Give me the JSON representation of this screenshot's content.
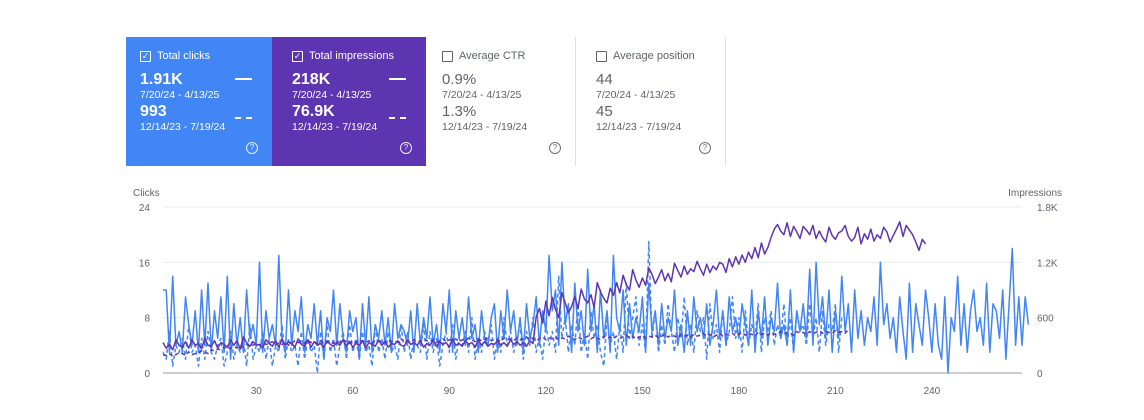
{
  "cards": [
    {
      "label": "Total clicks",
      "checked": true,
      "value_current": "1.91K",
      "range_current": "7/20/24 - 4/13/25",
      "value_previous": "993",
      "range_previous": "12/14/23 - 7/19/24"
    },
    {
      "label": "Total impressions",
      "checked": true,
      "value_current": "218K",
      "range_current": "7/20/24 - 4/13/25",
      "value_previous": "76.9K",
      "range_previous": "12/14/23 - 7/19/24"
    },
    {
      "label": "Average CTR",
      "checked": false,
      "value_current": "0.9%",
      "range_current": "7/20/24 - 4/13/25",
      "value_previous": "1.3%",
      "range_previous": "12/14/23 - 7/19/24"
    },
    {
      "label": "Average position",
      "checked": false,
      "value_current": "44",
      "range_current": "7/20/24 - 4/13/25",
      "value_previous": "45",
      "range_previous": "12/14/23 - 7/19/24"
    }
  ],
  "colors": {
    "clicks": "#4285f4",
    "impressions": "#5e35b1"
  },
  "chart_data": {
    "type": "line",
    "ylabel_left": "Clicks",
    "ylabel_right": "Impressions",
    "y_left_ticks": [
      "0",
      "8",
      "16",
      "24"
    ],
    "y_left_range": [
      0,
      24
    ],
    "y_right_ticks": [
      "0",
      "600",
      "1.2K",
      "1.8K"
    ],
    "y_right_range": [
      0,
      1800
    ],
    "x_range": [
      1,
      268
    ],
    "x_ticks": [
      "30",
      "60",
      "90",
      "120",
      "150",
      "180",
      "210",
      "240"
    ],
    "legend": "top-right",
    "series": [
      {
        "name": "Clicks (7/20/24 - 4/13/25)",
        "axis": "left",
        "style": "solid",
        "color": "#4285f4",
        "values": [
          12,
          12,
          3,
          14,
          4,
          6,
          3,
          11,
          7,
          4,
          9,
          3,
          12,
          4,
          13,
          3,
          9,
          5,
          11,
          3,
          14,
          2,
          10,
          4,
          8,
          3,
          12,
          5,
          7,
          4,
          16,
          3,
          9,
          5,
          7,
          4,
          17,
          5,
          3,
          12,
          4,
          9,
          6,
          11,
          3,
          7,
          5,
          10,
          4,
          9,
          2,
          8,
          6,
          12,
          4,
          10,
          5,
          3,
          9,
          6,
          8,
          2,
          10,
          4,
          11,
          3,
          7,
          5,
          9,
          4,
          8,
          3,
          10,
          5,
          7,
          6,
          4,
          9,
          3,
          10,
          4,
          8,
          5,
          11,
          4,
          7,
          3,
          10,
          6,
          12,
          3,
          9,
          5,
          8,
          4,
          11,
          5,
          7,
          3,
          9,
          5,
          4,
          8,
          10,
          3,
          9,
          5,
          12,
          6,
          9,
          4,
          8,
          3,
          10,
          5,
          7,
          11,
          4,
          9,
          6,
          17,
          9,
          12,
          4,
          16,
          7,
          10,
          3,
          13,
          6,
          9,
          4,
          15,
          6,
          10,
          3,
          12,
          5,
          9,
          3,
          17,
          8,
          6,
          12,
          4,
          10,
          5,
          8,
          6,
          11,
          3,
          13,
          6,
          9,
          4,
          10,
          5,
          8,
          6,
          12,
          4,
          7,
          3,
          9,
          4,
          11,
          6,
          8,
          5,
          10,
          4,
          7,
          12,
          5,
          9,
          4,
          11,
          6,
          8,
          5,
          10,
          7,
          4,
          12,
          3,
          9,
          5,
          11,
          4,
          8,
          6,
          13,
          5,
          7,
          4,
          12,
          3,
          9,
          6,
          10,
          5,
          15,
          4,
          16,
          7,
          11,
          5,
          12,
          3,
          9,
          5,
          14,
          6,
          10,
          3,
          12,
          5,
          9,
          4,
          8,
          6,
          11,
          4,
          16,
          7,
          10,
          5,
          8,
          3,
          11,
          6,
          2,
          13,
          3,
          10,
          7,
          4,
          12,
          8,
          3,
          10,
          4,
          2,
          11,
          0,
          8,
          6,
          14,
          4,
          10,
          3,
          9,
          12,
          6,
          8,
          4,
          13,
          3,
          10,
          9,
          5,
          12,
          2,
          10,
          18,
          4,
          11,
          4,
          11,
          7
        ]
      },
      {
        "name": "Clicks (12/14/23 - 7/19/24)",
        "axis": "left",
        "style": "dashed",
        "color": "#4285f4",
        "values": [
          3,
          2,
          6,
          1,
          4,
          3,
          5,
          2,
          7,
          3,
          4,
          1,
          5,
          2,
          6,
          3,
          2,
          4,
          5,
          1,
          3,
          6,
          2,
          4,
          3,
          5,
          1,
          7,
          2,
          4,
          3,
          6,
          2,
          5,
          1,
          4,
          3,
          7,
          2,
          5,
          3,
          4,
          1,
          6,
          2,
          5,
          3,
          4,
          0,
          6,
          2,
          7,
          3,
          5,
          1,
          4,
          6,
          2,
          7,
          3,
          5,
          2,
          6,
          3,
          4,
          1,
          7,
          3,
          5,
          2,
          6,
          3,
          4,
          2,
          7,
          3,
          6,
          2,
          5,
          4,
          3,
          7,
          2,
          6,
          3,
          5,
          1,
          4,
          6,
          3,
          7,
          2,
          5,
          4,
          6,
          3,
          8,
          2,
          5,
          3,
          6,
          4,
          7,
          2,
          5,
          3,
          8,
          4,
          6,
          3,
          5,
          7,
          2,
          6,
          4,
          8,
          3,
          5,
          2,
          7,
          4,
          6,
          3,
          14,
          5,
          8,
          3,
          7,
          4,
          10,
          3,
          6,
          2,
          9,
          5,
          7,
          3,
          1,
          8,
          4,
          6,
          2,
          7,
          3,
          13,
          5,
          8,
          11,
          4,
          7,
          3,
          19,
          5,
          9,
          3,
          7,
          4,
          10,
          6,
          3,
          8,
          5,
          11,
          4,
          7,
          3,
          9,
          6,
          8,
          2,
          10,
          5,
          7,
          3,
          9,
          4,
          6,
          11,
          5,
          8,
          3,
          9,
          4,
          7,
          5,
          10,
          3,
          8,
          6,
          9,
          4,
          7,
          5,
          10,
          4,
          8,
          3,
          9,
          6,
          7,
          4,
          10,
          5,
          8,
          3,
          9,
          4,
          7,
          6,
          10,
          3,
          8
        ]
      },
      {
        "name": "Impressions (7/20/24 - 4/13/25)",
        "axis": "right",
        "style": "solid",
        "color": "#5e35b1",
        "values": [
          330,
          270,
          310,
          250,
          360,
          300,
          280,
          340,
          270,
          360,
          300,
          320,
          260,
          380,
          300,
          290,
          350,
          270,
          330,
          310,
          280,
          360,
          300,
          350,
          260,
          390,
          330,
          290,
          340,
          300,
          310,
          270,
          360,
          320,
          290,
          350,
          280,
          370,
          300,
          340,
          320,
          280,
          370,
          310,
          290,
          360,
          280,
          340,
          300,
          320,
          280,
          350,
          310,
          290,
          330,
          300,
          360,
          290,
          340,
          280,
          320,
          300,
          350,
          270,
          330,
          310,
          290,
          360,
          300,
          340,
          280,
          320,
          310,
          350,
          300,
          290,
          360,
          310,
          330,
          300,
          350,
          280,
          320,
          300,
          360,
          290,
          340,
          310,
          330,
          280,
          370,
          300,
          320,
          290,
          350,
          310,
          330,
          280,
          360,
          300,
          340,
          290,
          320,
          310,
          350,
          300,
          330,
          290,
          360,
          310,
          340,
          300,
          330,
          290,
          350,
          320,
          610,
          700,
          540,
          780,
          620,
          820,
          690,
          600,
          870,
          760,
          650,
          720,
          830,
          700,
          910,
          800,
          760,
          850,
          710,
          980,
          880,
          810,
          760,
          920,
          840,
          980,
          870,
          1060,
          960,
          900,
          1120,
          1010,
          930,
          1030,
          950,
          1140,
          1070,
          970,
          1040,
          1120,
          1000,
          1080,
          990,
          1190,
          1110,
          1040,
          1160,
          1070,
          1130,
          1100,
          1210,
          1130,
          1060,
          1180,
          1090,
          1160,
          1120,
          1200,
          1180,
          1090,
          1240,
          1150,
          1260,
          1180,
          1280,
          1200,
          1310,
          1240,
          1360,
          1250,
          1410,
          1290,
          1360,
          1470,
          1560,
          1610,
          1540,
          1500,
          1630,
          1480,
          1590,
          1530,
          1460,
          1590,
          1550,
          1500,
          1600,
          1460,
          1540,
          1470,
          1420,
          1580,
          1490,
          1450,
          1520,
          1540,
          1600,
          1480,
          1430,
          1470,
          1580,
          1400,
          1510,
          1450,
          1560,
          1430,
          1500,
          1460,
          1580,
          1530,
          1420,
          1490,
          1560,
          1640,
          1480,
          1600,
          1550,
          1500,
          1420,
          1330,
          1450,
          1400
        ]
      },
      {
        "name": "Impressions (12/14/23 - 7/19/24)",
        "axis": "right",
        "style": "dashed",
        "color": "#5e35b1",
        "values": [
          200,
          190,
          210,
          180,
          200,
          220,
          210,
          190,
          230,
          200,
          210,
          220,
          240,
          230,
          210,
          250,
          240,
          260,
          250,
          280,
          260,
          270,
          290,
          270,
          300,
          280,
          310,
          290,
          300,
          320,
          300,
          330,
          310,
          320,
          340,
          300,
          330,
          310,
          340,
          300,
          320,
          350,
          330,
          340,
          320,
          360,
          330,
          340,
          320,
          350,
          310,
          330,
          340,
          320,
          350,
          330,
          360,
          340,
          320,
          350,
          330,
          360,
          340,
          330,
          350,
          320,
          360,
          340,
          350,
          330,
          360,
          340,
          350,
          330,
          370,
          340,
          350,
          330,
          360,
          350,
          340,
          370,
          350,
          340,
          360,
          330,
          350,
          370,
          340,
          360,
          350,
          370,
          340,
          360,
          350,
          380,
          360,
          340,
          370,
          350,
          360,
          380,
          350,
          370,
          360,
          340,
          380,
          360,
          370,
          350,
          380,
          360,
          370,
          390,
          360,
          380,
          350,
          370,
          390,
          360,
          380,
          370,
          390,
          360,
          380,
          370,
          400,
          380,
          360,
          390,
          370,
          380,
          400,
          370,
          390,
          380,
          360,
          400,
          380,
          390,
          370,
          400,
          380,
          390,
          410,
          380,
          400,
          370,
          390,
          410,
          380,
          400,
          390,
          410,
          380,
          400,
          420,
          390,
          410,
          400,
          380,
          420,
          400,
          410,
          390,
          420,
          400,
          410,
          430,
          400,
          420,
          390,
          410,
          430,
          400,
          420,
          410,
          430,
          400,
          420,
          440,
          410,
          430,
          420,
          400,
          440,
          420,
          430,
          410,
          440,
          420,
          430,
          450,
          420,
          440,
          430,
          410,
          450,
          430,
          440,
          420,
          450,
          430,
          440,
          460,
          430,
          450,
          440,
          430,
          460,
          440,
          450,
          430,
          470
        ]
      }
    ]
  }
}
